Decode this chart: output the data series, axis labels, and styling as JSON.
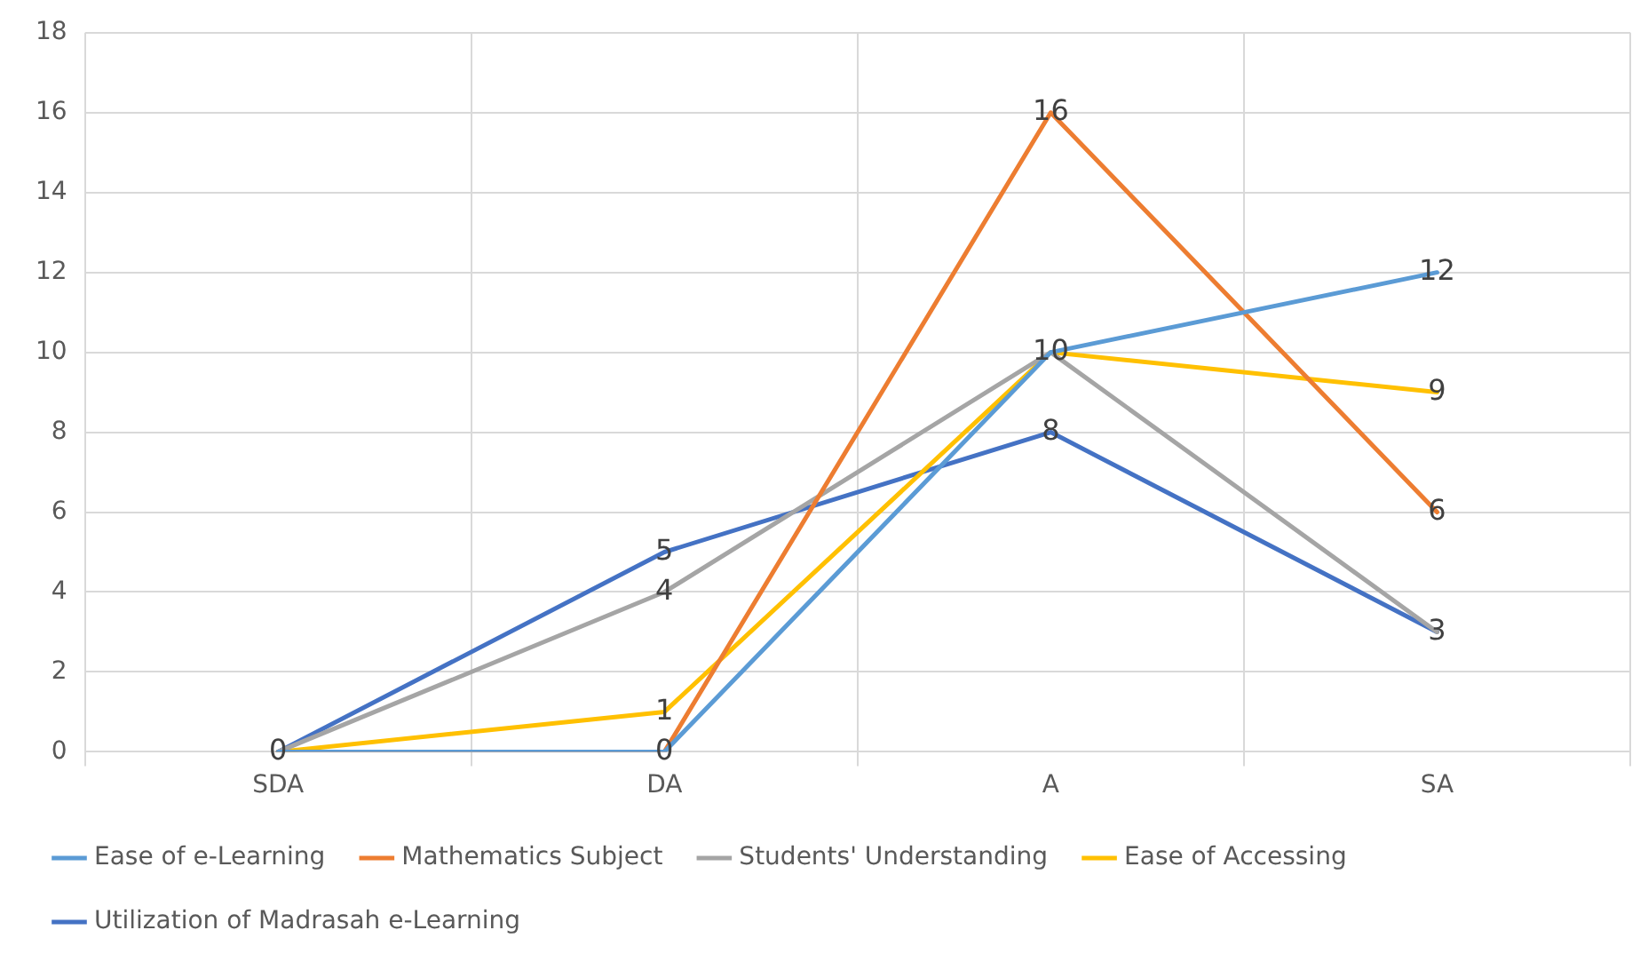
{
  "chart_data": {
    "type": "line",
    "categories": [
      "SDA",
      "DA",
      "A",
      "SA"
    ],
    "series": [
      {
        "name": "Ease of e-Learning",
        "color": "#5b9bd5",
        "values": [
          0,
          0,
          10,
          12
        ],
        "value_labels": [
          "0",
          "0",
          "10",
          "12"
        ]
      },
      {
        "name": "Mathematics Subject",
        "color": "#ed7d31",
        "values": [
          0,
          0,
          16,
          6
        ],
        "value_labels": [
          null,
          null,
          "16",
          "6"
        ]
      },
      {
        "name": "Students' Understanding",
        "color": "#a5a5a5",
        "values": [
          0,
          4,
          10,
          3
        ],
        "value_labels": [
          null,
          "4",
          null,
          "3"
        ]
      },
      {
        "name": "Ease of Accessing",
        "color": "#ffc000",
        "values": [
          0,
          1,
          10,
          9
        ],
        "value_labels": [
          null,
          "1",
          null,
          "9"
        ]
      },
      {
        "name": "Utilization of Madrasah e-Learning",
        "color": "#4472c4",
        "values": [
          0,
          5,
          8,
          3
        ],
        "value_labels": [
          null,
          "5",
          "8",
          null
        ]
      }
    ],
    "ylim": [
      0,
      18
    ],
    "yticks": [
      0,
      2,
      4,
      6,
      8,
      10,
      12,
      14,
      16,
      18
    ],
    "grid": true,
    "legend": "bottom",
    "marker": "none",
    "line_style": "solid"
  }
}
